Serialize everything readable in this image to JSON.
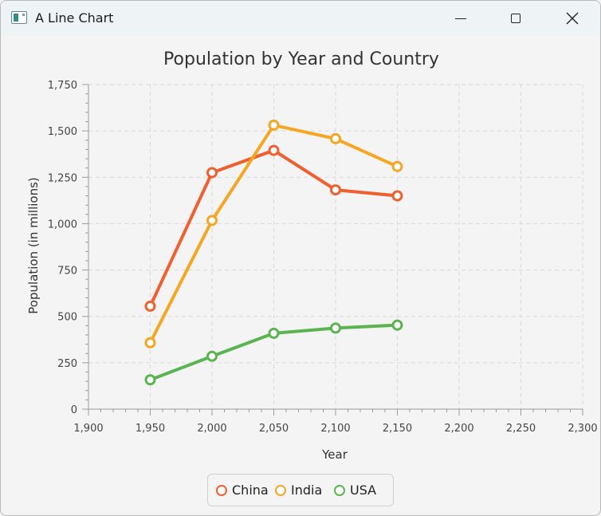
{
  "window": {
    "title": "A Line Chart",
    "minimize_icon": "minimize-icon",
    "maximize_icon": "maximize-icon",
    "close_icon": "close-icon"
  },
  "chart_data": {
    "type": "line",
    "title": "Population by Year and Country",
    "xlabel": "Year",
    "ylabel": "Population (in millions)",
    "xlim": [
      1900,
      2300
    ],
    "ylim": [
      0,
      1750
    ],
    "x_ticks": [
      "1,900",
      "1,950",
      "2,000",
      "2,050",
      "2,100",
      "2,150",
      "2,200",
      "2,250",
      "2,300"
    ],
    "y_ticks": [
      "0",
      "250",
      "500",
      "750",
      "1,000",
      "1,250",
      "1,500",
      "1,750"
    ],
    "x_tick_values": [
      1900,
      1950,
      2000,
      2050,
      2100,
      2150,
      2200,
      2250,
      2300
    ],
    "y_tick_values": [
      0,
      250,
      500,
      750,
      1000,
      1250,
      1500,
      1750
    ],
    "grid": true,
    "legend_position": "bottom",
    "x": [
      1950,
      2000,
      2050,
      2100,
      2150
    ],
    "series": [
      {
        "name": "China",
        "color": "#f0602e",
        "values": [
          555,
          1275,
          1395,
          1182,
          1150
        ]
      },
      {
        "name": "India",
        "color": "#f5a623",
        "values": [
          358,
          1017,
          1531,
          1458,
          1308
        ]
      },
      {
        "name": "USA",
        "color": "#5bb451",
        "values": [
          158,
          285,
          409,
          437,
          453
        ]
      }
    ]
  }
}
